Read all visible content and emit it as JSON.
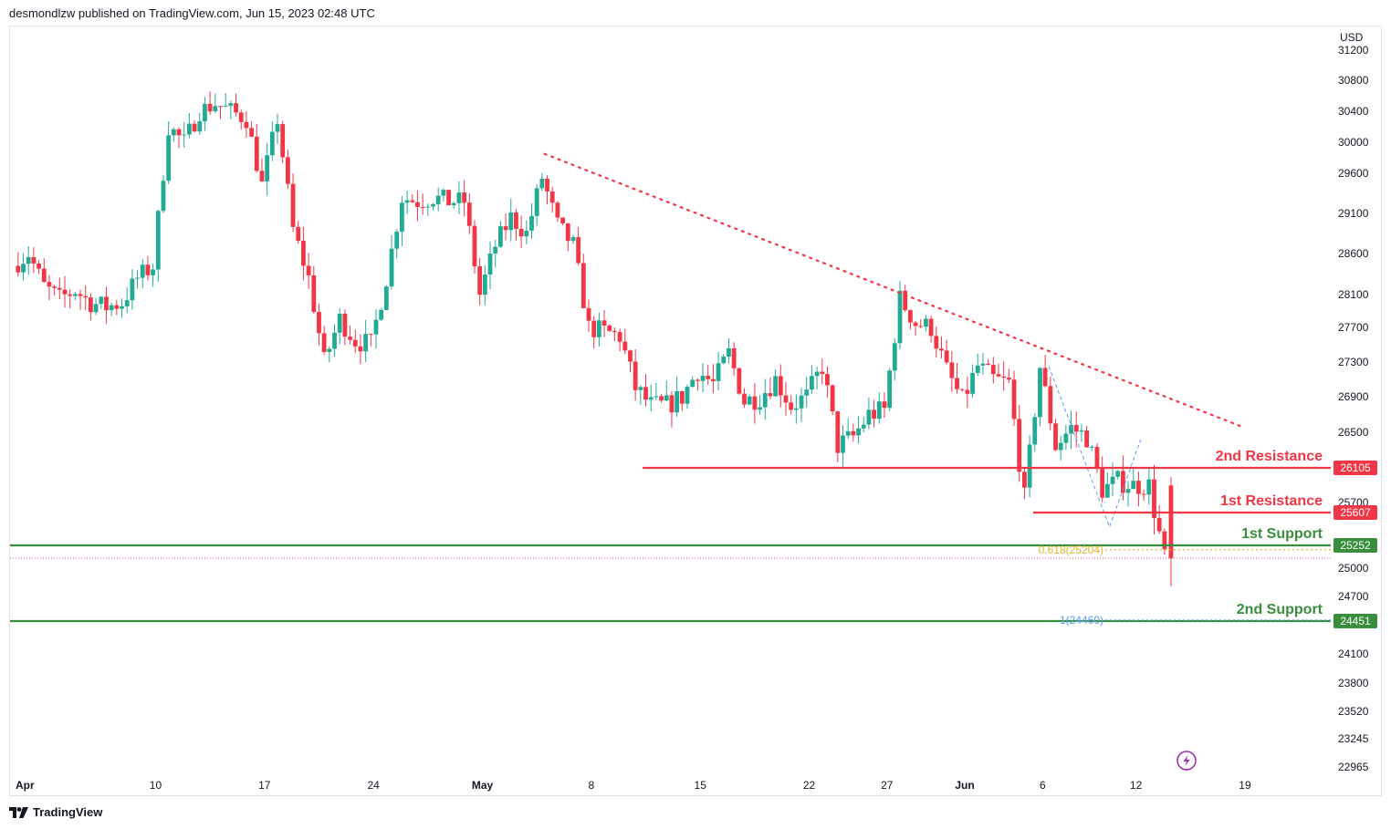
{
  "header": {
    "publisher_text": "desmondlzw published on TradingView.com, Jun 15, 2023 02:48 UTC"
  },
  "footer": {
    "logo_text": "TradingView",
    "logo_icon": "tradingview-logo-icon"
  },
  "colors": {
    "up": "#22ab94",
    "down": "#f23645",
    "support": "#388e3c",
    "resistance": "#f23645",
    "fib_0618": "#e6b422",
    "fib_1": "#5b9cf6"
  },
  "chart_data": {
    "type": "candlestick",
    "currency_label": "USD",
    "y_ticks": [
      31200,
      30800,
      30400,
      30000,
      29600,
      29100,
      28600,
      28100,
      27700,
      27300,
      26900,
      26500,
      26105,
      25700,
      25607,
      25252,
      25000,
      24700,
      24451,
      24100,
      23800,
      23520,
      23245,
      22965
    ],
    "x_ticks": [
      "Apr",
      "10",
      "17",
      "24",
      "May",
      "8",
      "15",
      "22",
      "27",
      "Jun",
      "6",
      "12",
      "19"
    ],
    "levels": [
      {
        "name": "2nd Resistance",
        "value": 26105,
        "kind": "resistance"
      },
      {
        "name": "1st Resistance",
        "value": 25607,
        "kind": "resistance"
      },
      {
        "name": "1st Support",
        "value": 25252,
        "kind": "support"
      },
      {
        "name": "2nd Support",
        "value": 24451,
        "kind": "support"
      }
    ],
    "fib_levels": [
      {
        "label": "0.618(25204)",
        "value": 25204
      },
      {
        "label": "1(24460)",
        "value": 24460
      }
    ],
    "last_price": 25110,
    "trendline": {
      "start": [
        "May 5",
        29850
      ],
      "end": [
        "Jun 19",
        26550
      ]
    },
    "price_path": [
      [
        "Apr 1",
        28450
      ],
      [
        "Apr 2",
        28600
      ],
      [
        "Apr 3",
        28200
      ],
      [
        "Apr 4",
        28050
      ],
      [
        "Apr 5",
        28150
      ],
      [
        "Apr 6",
        28000
      ],
      [
        "Apr 7",
        27950
      ],
      [
        "Apr 8",
        28000
      ],
      [
        "Apr 9",
        28300
      ],
      [
        "Apr 10",
        28450
      ],
      [
        "Apr 11",
        30200
      ],
      [
        "Apr 12",
        30000
      ],
      [
        "Apr 13",
        30400
      ],
      [
        "Apr 14",
        30500
      ],
      [
        "Apr 15",
        30400
      ],
      [
        "Apr 16",
        30300
      ],
      [
        "Apr 17",
        29450
      ],
      [
        "Apr 18",
        30300
      ],
      [
        "Apr 19",
        28900
      ],
      [
        "Apr 20",
        28300
      ],
      [
        "Apr 21",
        27300
      ],
      [
        "Apr 22",
        27800
      ],
      [
        "Apr 23",
        27550
      ],
      [
        "Apr 24",
        27500
      ],
      [
        "Apr 25",
        28300
      ],
      [
        "Apr 26",
        29300
      ],
      [
        "Apr 27",
        29250
      ],
      [
        "Apr 28",
        29300
      ],
      [
        "Apr 29",
        29250
      ],
      [
        "Apr 30",
        29250
      ],
      [
        "May 1",
        28100
      ],
      [
        "May 2",
        28700
      ],
      [
        "May 3",
        29050
      ],
      [
        "May 4",
        28850
      ],
      [
        "May 5",
        29550
      ],
      [
        "May 6",
        28950
      ],
      [
        "May 7",
        28700
      ],
      [
        "May 8",
        27700
      ],
      [
        "May 9",
        27650
      ],
      [
        "May 10",
        27600
      ],
      [
        "May 11",
        27000
      ],
      [
        "May 12",
        26800
      ],
      [
        "May 13",
        26800
      ],
      [
        "May 14",
        26900
      ],
      [
        "May 15",
        27200
      ],
      [
        "May 16",
        27050
      ],
      [
        "May 17",
        27400
      ],
      [
        "May 18",
        26850
      ],
      [
        "May 19",
        26900
      ],
      [
        "May 20",
        27100
      ],
      [
        "May 21",
        26800
      ],
      [
        "May 22",
        26900
      ],
      [
        "May 23",
        27250
      ],
      [
        "May 24",
        26350
      ],
      [
        "May 25",
        26450
      ],
      [
        "May 26",
        26700
      ],
      [
        "May 27",
        26750
      ],
      [
        "May 28",
        28050
      ],
      [
        "May 29",
        27750
      ],
      [
        "May 30",
        27700
      ],
      [
        "May 31",
        27200
      ],
      [
        "Jun 1",
        26850
      ],
      [
        "Jun 2",
        27250
      ],
      [
        "Jun 3",
        27100
      ],
      [
        "Jun 4",
        27050
      ],
      [
        "Jun 5",
        25750
      ],
      [
        "Jun 6",
        27250
      ],
      [
        "Jun 7",
        26350
      ],
      [
        "Jun 8",
        26550
      ],
      [
        "Jun 9",
        26450
      ],
      [
        "Jun 10",
        25850
      ],
      [
        "Jun 11",
        25950
      ],
      [
        "Jun 12",
        25900
      ],
      [
        "Jun 13",
        25900
      ],
      [
        "Jun 14",
        25110
      ]
    ]
  }
}
